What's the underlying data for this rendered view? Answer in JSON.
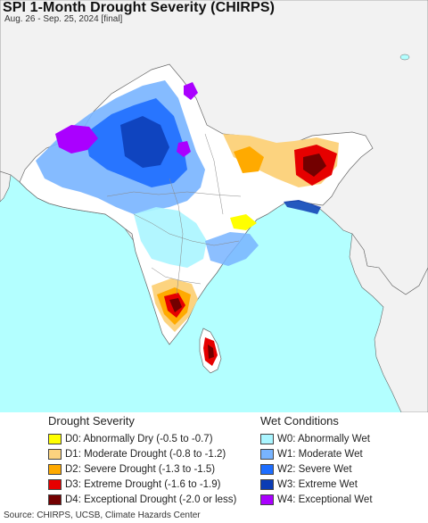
{
  "header": {
    "title": "SPI 1-Month Drought Severity (CHIRPS)",
    "subtitle": "Aug. 26 - Sep. 25, 2024 [final]"
  },
  "colors": {
    "ocean": "#b3ffff",
    "land": "#ffffff",
    "outside": "#f2f2f2",
    "border": "#666666"
  },
  "legend": {
    "drought_title": "Drought Severity",
    "wet_title": "Wet Conditions",
    "drought": [
      {
        "label": "D0: Abnormally Dry (-0.5 to -0.7)",
        "color": "#ffff00"
      },
      {
        "label": "D1: Moderate Drought (-0.8 to -1.2)",
        "color": "#fcd37f"
      },
      {
        "label": "D2: Severe Drought (-1.3 to -1.5)",
        "color": "#ffaa00"
      },
      {
        "label": "D3: Extreme Drought (-1.6 to -1.9)",
        "color": "#e60000"
      },
      {
        "label": "D4: Exceptional Drought (-2.0 or less)",
        "color": "#730000"
      }
    ],
    "wet": [
      {
        "label": "W0: Abnormally Wet",
        "color": "#aaf5ff"
      },
      {
        "label": "W1: Moderate Wet",
        "color": "#78b4ff"
      },
      {
        "label": "W2: Severe Wet",
        "color": "#1e6eff"
      },
      {
        "label": "W3: Extreme Wet",
        "color": "#0a3cb4"
      },
      {
        "label": "W4: Exceptional Wet",
        "color": "#aa00ff"
      }
    ]
  },
  "footer": {
    "source": "Source: CHIRPS, UCSB, Climate Hazards Center"
  }
}
